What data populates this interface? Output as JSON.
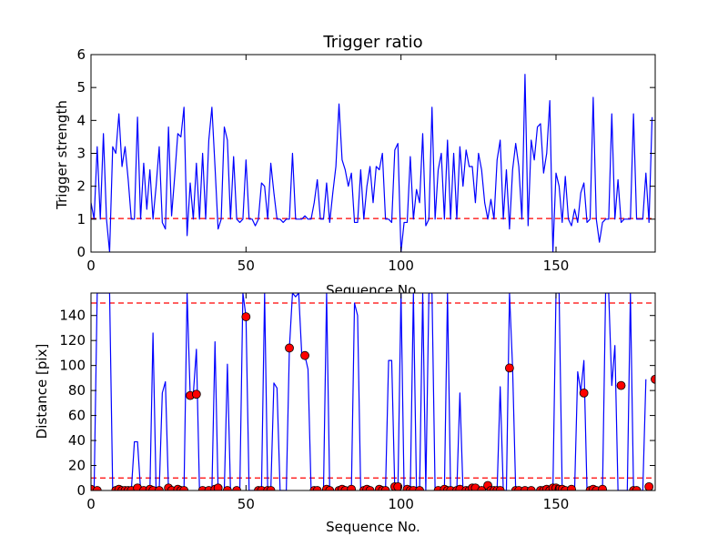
{
  "colors": {
    "line": "#0000ff",
    "threshold": "#ff0000",
    "marker": "#ff0000",
    "marker_edge": "#000000"
  },
  "chart_data": [
    {
      "type": "line",
      "title": "Trigger ratio",
      "xlabel": "Sequence No.",
      "ylabel": "Trigger strength",
      "xlim": [
        0,
        182
      ],
      "ylim": [
        0,
        6
      ],
      "xticks": [
        0,
        50,
        100,
        150
      ],
      "yticks": [
        0,
        1,
        2,
        3,
        4,
        5,
        6
      ],
      "grid": false,
      "threshold": 1.02,
      "series": [
        {
          "values": [
            1.5,
            1.0,
            3.2,
            1.0,
            3.6,
            1.0,
            0.0,
            3.2,
            3.0,
            4.2,
            2.6,
            3.2,
            2.2,
            1.0,
            1.0,
            4.1,
            1.0,
            2.7,
            1.3,
            2.5,
            1.0,
            2.0,
            3.2,
            0.9,
            0.7,
            3.8,
            1.1,
            2.3,
            3.6,
            3.5,
            4.4,
            0.5,
            2.1,
            1.0,
            2.7,
            1.0,
            3.0,
            1.0,
            3.4,
            4.4,
            2.6,
            0.7,
            1.0,
            3.8,
            3.4,
            1.0,
            2.9,
            1.0,
            0.9,
            1.0,
            2.8,
            1.0,
            1.0,
            0.8,
            1.0,
            2.1,
            2.0,
            1.0,
            2.7,
            1.8,
            1.0,
            1.0,
            0.9,
            1.0,
            1.0,
            3.0,
            1.0,
            1.0,
            1.0,
            1.1,
            1.0,
            1.0,
            1.5,
            2.2,
            1.0,
            1.0,
            2.1,
            0.9,
            1.8,
            2.6,
            4.5,
            2.8,
            2.5,
            2.0,
            2.4,
            0.9,
            0.9,
            2.5,
            1.0,
            2.0,
            2.6,
            1.5,
            2.6,
            2.5,
            3.0,
            1.0,
            1.0,
            0.9,
            3.1,
            3.3,
            0.0,
            0.9,
            0.9,
            2.9,
            1.0,
            1.9,
            1.5,
            3.6,
            0.8,
            1.0,
            4.4,
            1.0,
            2.5,
            3.0,
            1.0,
            3.4,
            1.0,
            3.0,
            1.0,
            3.2,
            2.0,
            3.1,
            2.6,
            2.6,
            1.5,
            3.0,
            2.5,
            1.5,
            1.0,
            1.6,
            1.0,
            2.8,
            3.4,
            1.0,
            2.5,
            0.7,
            2.5,
            3.3,
            2.6,
            1.0,
            5.4,
            0.8,
            3.4,
            2.8,
            3.8,
            3.9,
            2.4,
            3.0,
            4.6,
            0.0,
            2.4,
            2.0,
            0.9,
            2.3,
            1.0,
            0.8,
            1.3,
            0.9,
            1.8,
            2.1,
            0.9,
            1.0,
            4.7,
            1.0,
            0.3,
            0.9,
            1.0,
            1.0,
            4.2,
            1.0,
            2.2,
            0.9,
            1.0,
            1.0,
            1.0,
            4.2,
            1.0,
            1.0,
            1.0,
            2.4,
            0.9,
            4.1
          ]
        }
      ]
    },
    {
      "type": "line",
      "xlabel": "Sequence No.",
      "ylabel": "Distance [pix]",
      "xlim": [
        0,
        182
      ],
      "ylim": [
        0,
        158
      ],
      "xticks": [
        0,
        50,
        100,
        150
      ],
      "yticks": [
        0,
        20,
        40,
        60,
        80,
        100,
        120,
        140
      ],
      "grid": false,
      "thresholds": [
        150,
        10
      ],
      "series": [
        {
          "values": [
            1,
            0,
            158,
            158,
            158,
            158,
            158,
            0,
            0,
            0,
            0,
            0,
            0,
            0,
            39,
            39,
            0,
            0,
            0,
            0,
            126,
            0,
            0,
            78,
            87,
            0,
            0,
            0,
            0,
            0,
            0,
            158,
            76,
            77,
            113,
            0,
            0,
            0,
            0,
            0,
            119,
            0,
            0,
            0,
            101,
            0,
            0,
            0,
            0,
            158,
            139,
            0,
            0,
            0,
            0,
            0,
            158,
            0,
            0,
            86,
            82,
            0,
            0,
            0,
            114,
            158,
            155,
            158,
            108,
            108,
            97,
            0,
            0,
            0,
            0,
            0,
            158,
            0,
            0,
            0,
            0,
            0,
            0,
            0,
            0,
            150,
            140,
            0,
            0,
            0,
            0,
            0,
            0,
            0,
            0,
            0,
            104,
            104,
            0,
            0,
            158,
            0,
            0,
            0,
            158,
            0,
            0,
            158,
            0,
            158,
            158,
            0,
            0,
            0,
            0,
            158,
            0,
            0,
            0,
            78,
            0,
            0,
            0,
            0,
            0,
            0,
            0,
            4,
            0,
            0,
            0,
            0,
            83,
            0,
            0,
            158,
            98,
            0,
            0,
            0,
            0,
            0,
            0,
            0,
            0,
            0,
            0,
            0,
            0,
            0,
            158,
            158,
            0,
            0,
            2,
            0,
            0,
            95,
            79,
            104,
            0,
            0,
            0,
            0,
            0,
            0,
            158,
            158,
            84,
            116,
            0,
            0,
            0,
            0,
            158,
            3,
            0,
            0,
            0,
            89
          ]
        }
      ],
      "markers": [
        [
          0,
          1
        ],
        [
          2,
          0
        ],
        [
          8,
          0
        ],
        [
          9,
          1
        ],
        [
          10,
          0
        ],
        [
          11,
          0
        ],
        [
          12,
          0
        ],
        [
          13,
          0
        ],
        [
          15,
          2
        ],
        [
          17,
          0
        ],
        [
          19,
          1
        ],
        [
          20,
          0
        ],
        [
          22,
          0
        ],
        [
          25,
          2
        ],
        [
          26,
          0
        ],
        [
          28,
          1
        ],
        [
          29,
          0
        ],
        [
          30,
          0
        ],
        [
          32,
          76
        ],
        [
          34,
          77
        ],
        [
          36,
          0
        ],
        [
          38,
          0
        ],
        [
          40,
          1
        ],
        [
          41,
          2
        ],
        [
          44,
          0
        ],
        [
          47,
          0
        ],
        [
          50,
          139
        ],
        [
          54,
          0
        ],
        [
          55,
          0
        ],
        [
          57,
          0
        ],
        [
          58,
          0
        ],
        [
          64,
          114
        ],
        [
          69,
          108
        ],
        [
          72,
          0
        ],
        [
          73,
          0
        ],
        [
          76,
          1
        ],
        [
          77,
          0
        ],
        [
          80,
          0
        ],
        [
          81,
          1
        ],
        [
          82,
          0
        ],
        [
          84,
          1
        ],
        [
          88,
          0
        ],
        [
          89,
          1
        ],
        [
          90,
          0
        ],
        [
          93,
          1
        ],
        [
          94,
          0
        ],
        [
          95,
          0
        ],
        [
          98,
          3
        ],
        [
          99,
          3
        ],
        [
          102,
          1
        ],
        [
          103,
          0
        ],
        [
          104,
          0
        ],
        [
          106,
          0
        ],
        [
          112,
          0
        ],
        [
          114,
          1
        ],
        [
          115,
          0
        ],
        [
          116,
          0
        ],
        [
          118,
          0
        ],
        [
          119,
          1
        ],
        [
          121,
          0
        ],
        [
          122,
          0
        ],
        [
          123,
          2
        ],
        [
          124,
          2
        ],
        [
          126,
          0
        ],
        [
          128,
          4
        ],
        [
          129,
          0
        ],
        [
          130,
          0
        ],
        [
          131,
          0
        ],
        [
          132,
          0
        ],
        [
          135,
          98
        ],
        [
          137,
          0
        ],
        [
          138,
          0
        ],
        [
          140,
          0
        ],
        [
          142,
          0
        ],
        [
          145,
          0
        ],
        [
          146,
          0
        ],
        [
          147,
          1
        ],
        [
          148,
          0
        ],
        [
          149,
          2
        ],
        [
          150,
          2
        ],
        [
          151,
          1
        ],
        [
          152,
          1
        ],
        [
          153,
          0
        ],
        [
          155,
          1
        ],
        [
          159,
          78
        ],
        [
          161,
          0
        ],
        [
          162,
          1
        ],
        [
          163,
          0
        ],
        [
          165,
          1
        ],
        [
          171,
          84
        ],
        [
          175,
          0
        ],
        [
          176,
          0
        ],
        [
          180,
          3
        ],
        [
          182,
          89
        ]
      ]
    }
  ]
}
